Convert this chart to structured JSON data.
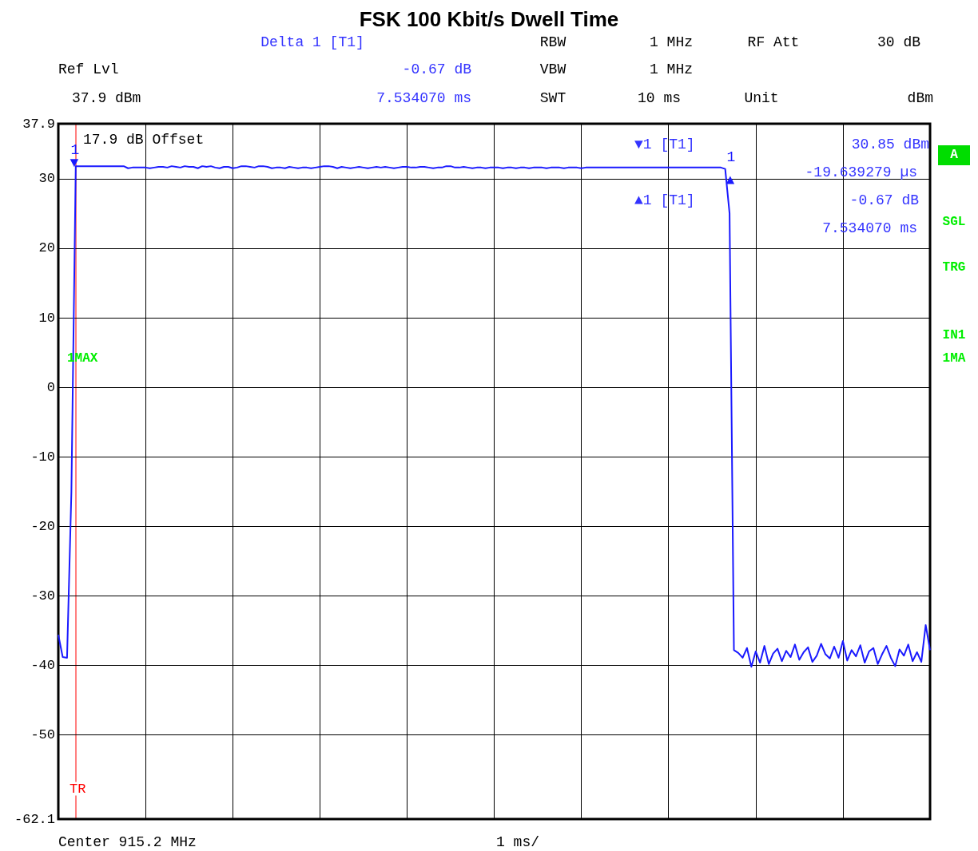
{
  "chart_data": {
    "type": "line",
    "title": "FSK 100 Kbit/s Dwell Time",
    "categories": [
      null,
      null,
      null,
      null,
      null,
      null,
      null,
      null,
      null,
      null,
      null,
      null,
      null,
      null,
      null,
      null,
      null,
      null,
      null,
      null,
      null,
      null,
      null,
      null,
      null,
      null,
      null,
      null,
      null,
      null,
      null,
      null,
      null,
      null,
      null,
      null,
      null,
      null,
      null,
      null,
      null,
      null,
      null,
      null,
      null,
      null,
      null,
      null,
      null,
      null,
      null,
      null,
      null,
      null,
      null,
      null,
      null,
      null,
      null,
      null,
      null,
      null,
      null,
      null,
      null,
      null,
      null,
      null,
      null,
      null,
      null,
      null,
      null,
      null,
      null,
      null,
      null,
      null,
      null,
      null,
      null,
      null,
      null,
      null,
      null,
      null,
      null,
      null,
      null,
      null,
      null,
      null,
      null,
      null,
      null,
      null,
      null,
      null,
      null,
      null,
      null,
      null,
      null,
      null,
      null,
      null,
      null,
      null,
      null,
      null,
      null,
      null,
      null,
      null,
      null,
      null,
      null,
      null,
      null,
      null,
      null,
      null,
      null,
      null,
      null,
      null,
      null,
      null,
      null,
      null,
      null,
      null,
      null,
      null,
      null,
      null,
      null,
      null,
      null,
      null,
      null,
      null,
      null,
      null,
      null,
      null,
      null,
      null,
      null,
      null,
      null,
      null,
      null,
      null,
      null,
      null,
      null,
      null,
      null,
      null,
      null,
      null,
      null,
      null,
      null,
      null,
      null,
      null,
      null,
      null,
      null,
      null,
      null,
      null,
      null,
      null,
      null,
      null,
      null,
      null,
      null,
      null,
      null,
      null,
      null,
      null,
      null,
      null,
      null,
      null,
      null,
      null,
      null,
      null,
      null,
      null,
      null,
      null,
      null,
      null,
      null
    ],
    "series": [
      {
        "color": "#1a1aff",
        "values": [
          -35.6,
          -38.8,
          -38.9,
          -15,
          31.8,
          31.8,
          31.8,
          31.8,
          31.8,
          31.8,
          31.8,
          31.8,
          31.8,
          31.8,
          31.8,
          31.8,
          31.5,
          31.6,
          31.6,
          31.6,
          31.6,
          31.5,
          31.6,
          31.7,
          31.7,
          31.6,
          31.8,
          31.7,
          31.6,
          31.8,
          31.7,
          31.7,
          31.5,
          31.8,
          31.7,
          31.8,
          31.6,
          31.5,
          31.7,
          31.7,
          31.5,
          31.6,
          31.8,
          31.8,
          31.7,
          31.6,
          31.8,
          31.8,
          31.7,
          31.5,
          31.6,
          31.6,
          31.5,
          31.7,
          31.6,
          31.5,
          31.6,
          31.6,
          31.5,
          31.6,
          31.7,
          31.8,
          31.8,
          31.7,
          31.5,
          31.7,
          31.6,
          31.5,
          31.6,
          31.7,
          31.6,
          31.5,
          31.6,
          31.7,
          31.6,
          31.7,
          31.6,
          31.5,
          31.6,
          31.7,
          31.7,
          31.6,
          31.6,
          31.7,
          31.7,
          31.6,
          31.5,
          31.6,
          31.6,
          31.8,
          31.8,
          31.6,
          31.6,
          31.7,
          31.6,
          31.5,
          31.6,
          31.6,
          31.5,
          31.6,
          31.6,
          31.6,
          31.5,
          31.6,
          31.6,
          31.5,
          31.6,
          31.6,
          31.5,
          31.6,
          31.6,
          31.6,
          31.5,
          31.6,
          31.6,
          31.6,
          31.5,
          31.6,
          31.6,
          31.6,
          31.5,
          31.6,
          31.6,
          31.6,
          31.6,
          31.6,
          31.6,
          31.6,
          31.6,
          31.6,
          31.6,
          31.6,
          31.6,
          31.6,
          31.6,
          31.6,
          31.6,
          31.6,
          31.6,
          31.6,
          31.6,
          31.6,
          31.6,
          31.6,
          31.6,
          31.6,
          31.6,
          31.6,
          31.6,
          31.6,
          31.6,
          31.6,
          31.6,
          31.4,
          25,
          -37.8,
          -38.2,
          -38.9,
          -37.5,
          -40.2,
          -38.0,
          -39.6,
          -37.2,
          -39.8,
          -38.3,
          -37.6,
          -39.4,
          -37.9,
          -38.8,
          -37.0,
          -39.2,
          -38.1,
          -37.4,
          -39.5,
          -38.6,
          -36.9,
          -38.4,
          -39.0,
          -37.3,
          -38.9,
          -36.5,
          -39.3,
          -37.8,
          -38.7,
          -37.1,
          -39.6,
          -38.0,
          -37.5,
          -39.8,
          -38.4,
          -37.2,
          -38.9,
          -40.1,
          -37.7,
          -38.6,
          -37.0,
          -39.4,
          -38.1,
          -39.5,
          -34.2,
          -37.8
        ]
      }
    ],
    "ylim": [
      -62.1,
      37.9
    ],
    "yticks": [
      -62.1,
      -50,
      -40,
      -30,
      -20,
      -10,
      0,
      10,
      20,
      30,
      37.9
    ],
    "tick_labels": "y",
    "grid": true,
    "line_style": "solid",
    "ref_lines": [
      {
        "axis": "x",
        "label": "TR",
        "color": "#ff0000"
      }
    ],
    "annotations": [
      "Delta 1 [T1]",
      "-0.67 dB",
      "7.534070 ms",
      "RBW",
      "1 MHz",
      "RF Att",
      "30 dB",
      "VBW",
      "1 MHz",
      "SWT",
      "10 ms",
      "Unit",
      "dBm",
      "Ref Lvl",
      "37.9 dBm",
      "17.9 dB Offset",
      "1MAX",
      "▼1 [T1]",
      "30.85 dBm",
      "-19.639279 µs",
      "▲1 [T1]",
      "-0.67 dB",
      "7.534070 ms",
      "A",
      "SGL",
      "TRG",
      "IN1",
      "1MA",
      "Center 915.2 MHz",
      "1 ms/",
      "▼",
      "1",
      "▲",
      "1"
    ]
  }
}
